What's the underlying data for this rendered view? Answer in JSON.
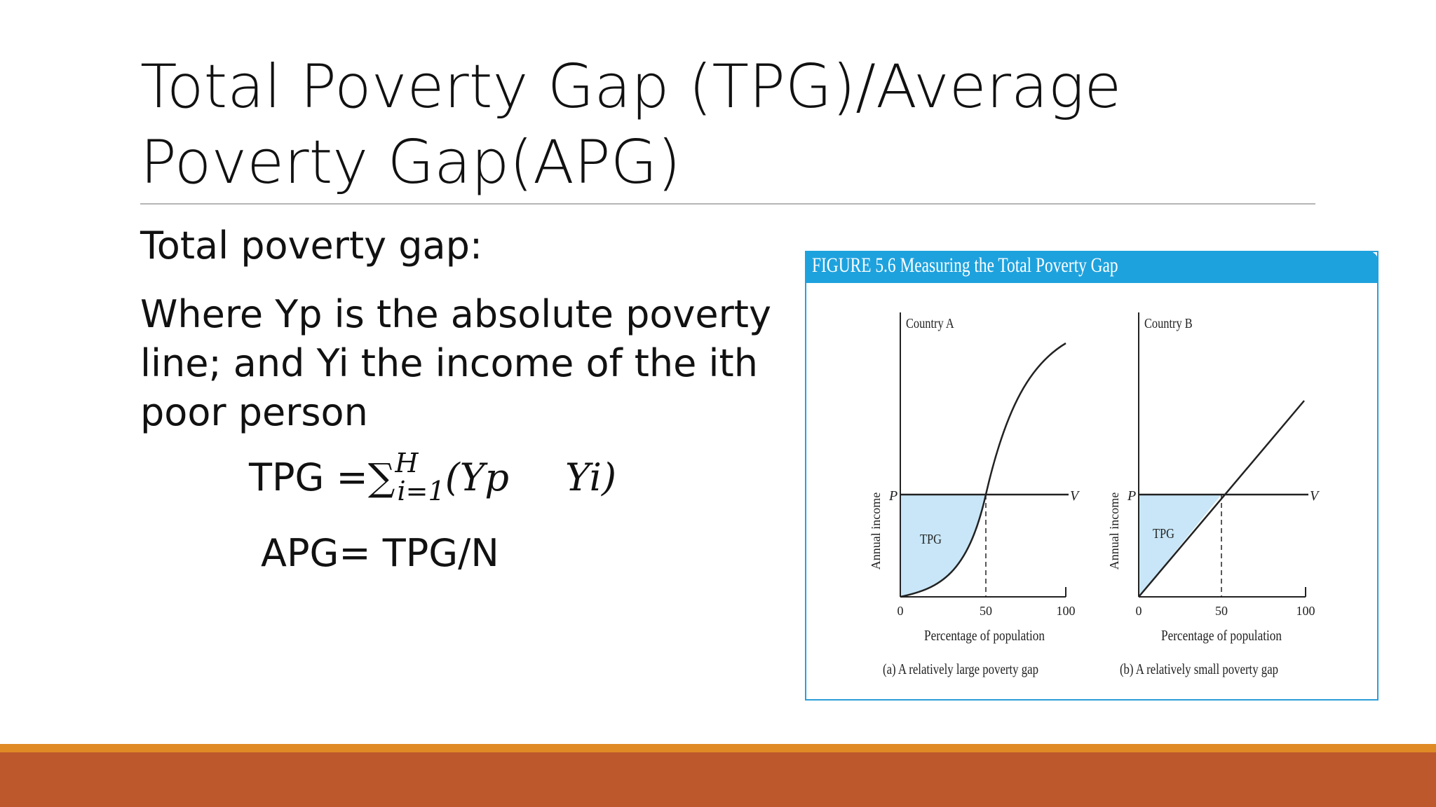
{
  "slide": {
    "title": "Total Poverty Gap (TPG)/Average Poverty Gap(APG)",
    "line1": "Total poverty gap:",
    "line2": "Where Yp is the absolute poverty line; and Yi the income of the ith poor person",
    "formula": {
      "lhs": "TPG =",
      "sum": "∑",
      "upper": "H",
      "lower": "i=1",
      "expr_open": "(Yp",
      "expr_close": "Yi)"
    },
    "apg": "APG= TPG/N"
  },
  "figure": {
    "header": "FIGURE 5.6   Measuring the Total Poverty Gap",
    "colors": {
      "header": "#1ea2de",
      "border": "#2b9ed8",
      "shade": "#c8e6f7"
    },
    "panels": [
      {
        "name": "Country A",
        "ylabel": "Annual income",
        "xlabel": "Percentage of population",
        "ticks": [
          "0",
          "50",
          "100"
        ],
        "p_label": "P",
        "v_label": "V",
        "tpg_label": "TPG",
        "caption": "(a) A relatively large poverty gap",
        "curve": "s-curve"
      },
      {
        "name": "Country B",
        "ylabel": "Annual income",
        "xlabel": "Percentage of population",
        "ticks": [
          "0",
          "50",
          "100"
        ],
        "p_label": "P",
        "v_label": "V",
        "tpg_label": "TPG",
        "caption": "(b) A relatively small poverty gap",
        "curve": "straight-line"
      }
    ]
  },
  "footer": {
    "stripe_color": "#e08a26",
    "bar_color": "#bd582c"
  }
}
